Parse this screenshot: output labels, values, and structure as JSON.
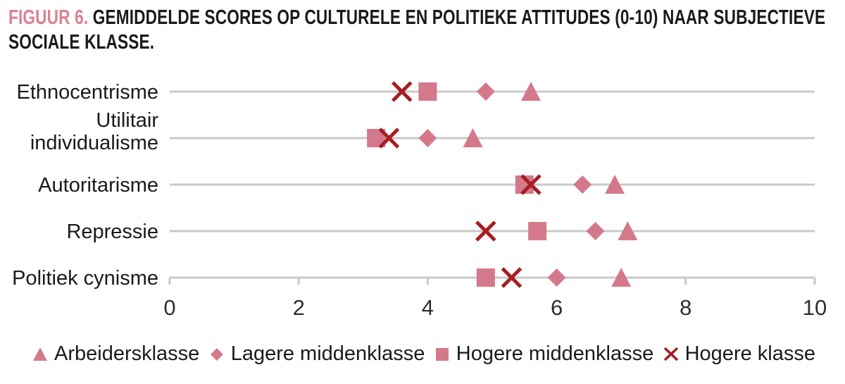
{
  "title": {
    "figure_label": "FIGUUR 6.",
    "text": "GEMIDDELDE SCORES OP CULTURELE EN POLITIEKE ATTITUDES (0-10) NAAR SUBJECTIEVE SOCIALE KLASSE."
  },
  "colors": {
    "marker_pink": "#d4798b",
    "cross_red": "#a81d22",
    "figure_label_pink": "#db8094",
    "text_dark": "#1a1a1a",
    "gridline": "#c9c9c9",
    "tick_label": "#2e2e2e"
  },
  "chart_data": {
    "type": "scatter",
    "subtype": "horizontal-dot-plot",
    "title": "FIGUUR 6. GEMIDDELDE SCORES OP CULTURELE EN POLITIEKE ATTITUDES (0-10) NAAR SUBJECTIEVE SOCIALE KLASSE.",
    "categories": [
      "Ethnocentrisme",
      "Utilitair\nindividualisme",
      "Autoritarisme",
      "Repressie",
      "Politiek cynisme"
    ],
    "series": [
      {
        "name": "Arbeidersklasse",
        "marker": "triangle",
        "values": [
          5.6,
          4.7,
          6.9,
          7.1,
          7.0
        ]
      },
      {
        "name": "Lagere middenklasse",
        "marker": "diamond",
        "values": [
          4.9,
          4.0,
          6.4,
          6.6,
          6.0
        ]
      },
      {
        "name": "Hogere middenklasse",
        "marker": "square",
        "values": [
          4.0,
          3.2,
          5.5,
          5.7,
          4.9
        ]
      },
      {
        "name": "Hogere klasse",
        "marker": "cross",
        "values": [
          3.6,
          3.4,
          5.6,
          4.9,
          5.3
        ]
      }
    ],
    "xlim": [
      0,
      10
    ],
    "xticks": [
      0,
      2,
      4,
      6,
      8,
      10
    ],
    "xlabel": "",
    "ylabel": "",
    "grid": "horizontal row lines only",
    "legend_position": "bottom"
  }
}
